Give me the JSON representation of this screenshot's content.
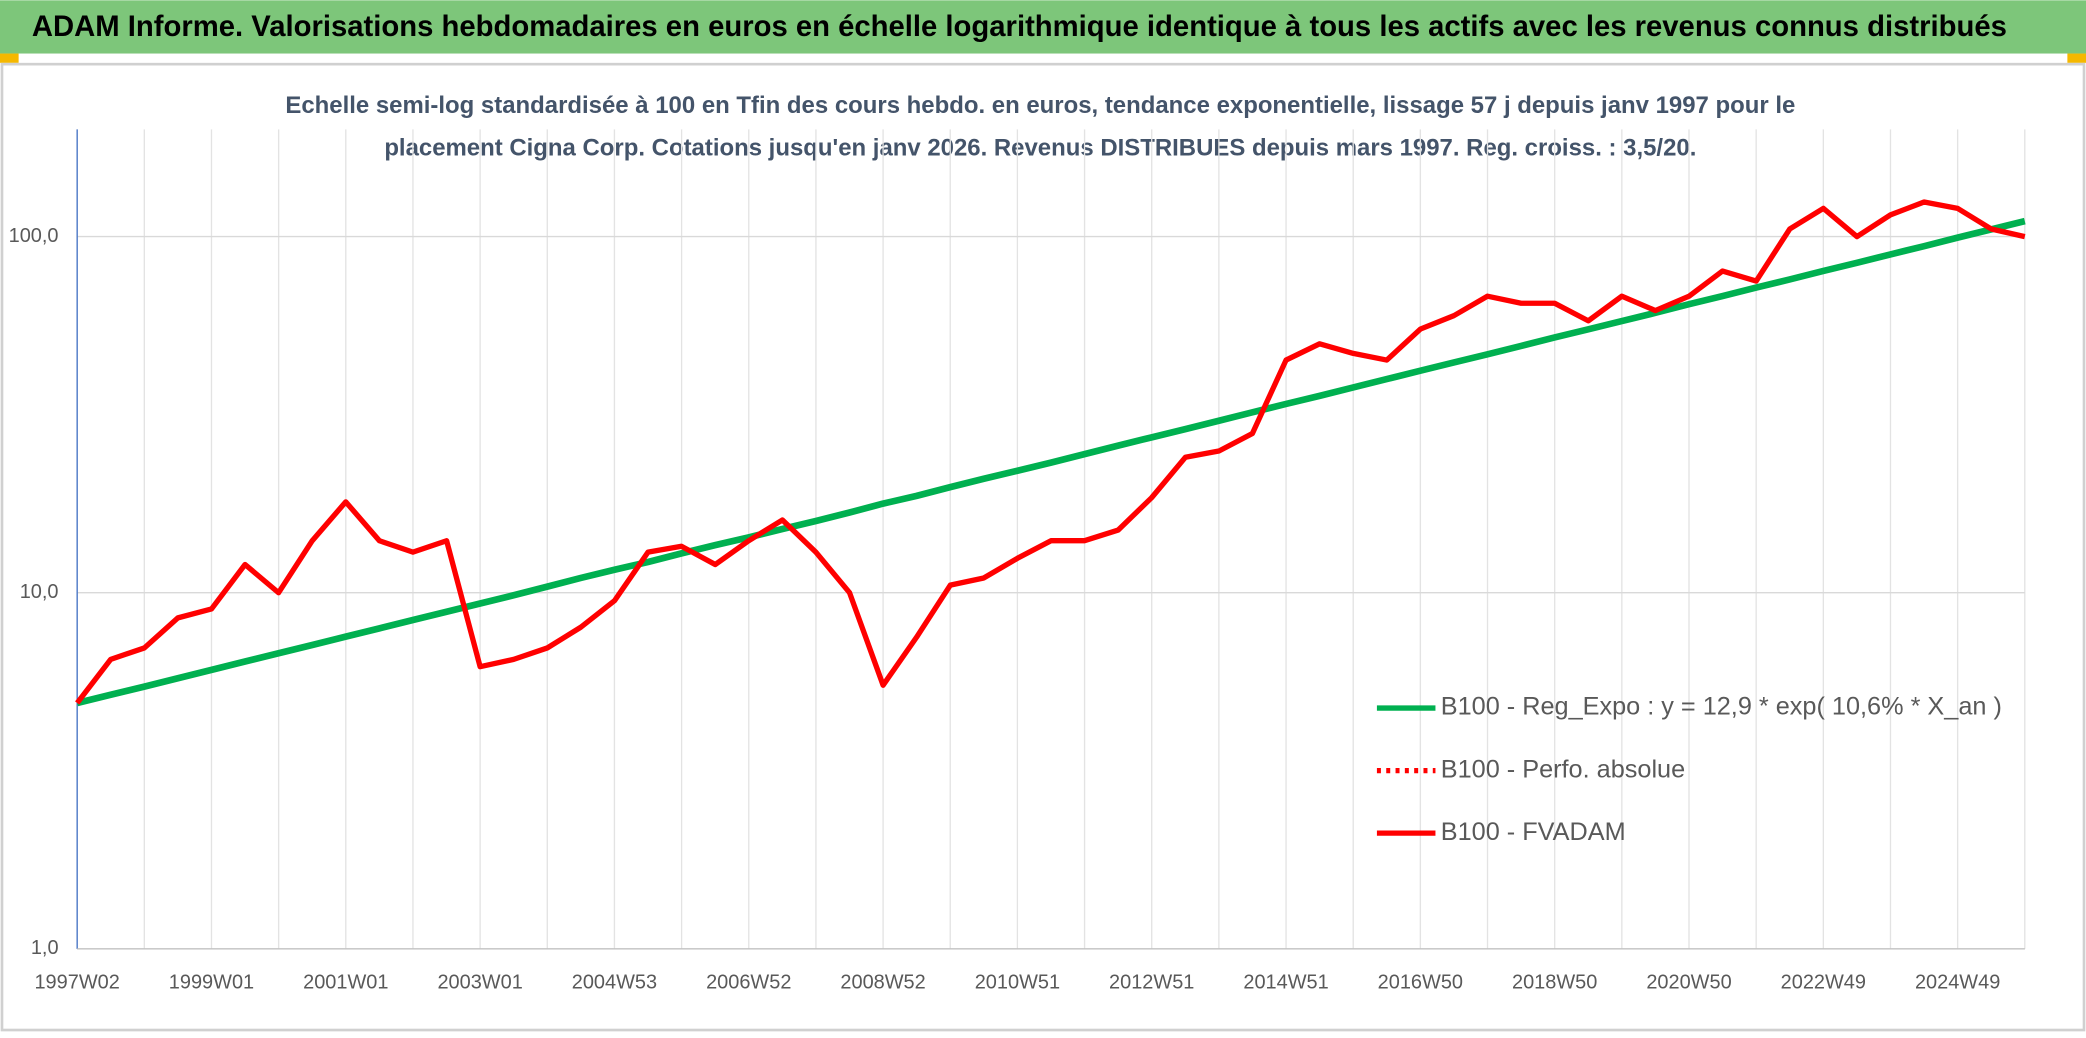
{
  "chart_data": {
    "type": "line",
    "title": "ADAM Informe. Valorisations hebdomadaires en euros en échelle logarithmique identique à tous les actifs avec les revenus connus distribués",
    "subtitle": [
      "Echelle semi-log standardisée à 100 en Tfin des cours hebdo. en euros, tendance exponentielle, lissage 57 j depuis janv 1997 pour le",
      "placement Cigna Corp. Cotations jusqu'en janv 2026. Revenus DISTRIBUES depuis mars 1997. Reg. croiss. : 3,5/20."
    ],
    "categories": [
      "1997W02",
      null,
      null,
      null,
      "1999W01",
      null,
      null,
      null,
      "2001W01",
      null,
      null,
      null,
      "2003W01",
      null,
      null,
      null,
      "2004W53",
      null,
      null,
      null,
      "2006W52",
      null,
      null,
      null,
      "2008W52",
      null,
      null,
      null,
      "2010W51",
      null,
      null,
      null,
      "2012W51",
      null,
      null,
      null,
      "2014W51",
      null,
      null,
      null,
      "2016W50",
      null,
      null,
      null,
      "2018W50",
      null,
      null,
      null,
      "2020W50",
      null,
      null,
      null,
      "2022W49",
      null,
      null,
      null,
      "2024W49",
      null,
      null
    ],
    "series": [
      {
        "name": "B100 - Reg_Expo : y = 12,9 * exp( 10,6% *  X_an )",
        "color": "#00b050",
        "style": "solid",
        "values": [
          4.9,
          5.17,
          5.45,
          5.75,
          6.07,
          6.41,
          6.76,
          7.13,
          7.53,
          7.94,
          8.38,
          8.84,
          9.33,
          9.84,
          10.4,
          11.0,
          11.6,
          12.2,
          12.9,
          13.6,
          14.3,
          15.1,
          15.9,
          16.8,
          17.8,
          18.7,
          19.8,
          20.9,
          22.0,
          23.2,
          24.5,
          25.9,
          27.3,
          28.8,
          30.4,
          32.1,
          33.9,
          35.7,
          37.7,
          39.8,
          42.0,
          44.3,
          46.7,
          49.3,
          52.1,
          54.9,
          57.9,
          61.1,
          64.6,
          68.1,
          71.9,
          75.8,
          80.1,
          84.4,
          89.1,
          94.0,
          99.3,
          104.7,
          110.5
        ]
      },
      {
        "name": "B100 - Perfo. absolue",
        "color": "#ff0000",
        "style": "dotted",
        "values": [
          null,
          null,
          null,
          null,
          null,
          null,
          null,
          null,
          null,
          null,
          null,
          null,
          null,
          null,
          null,
          null,
          null,
          null,
          null,
          null,
          null,
          null,
          null,
          null,
          null,
          null,
          null,
          null,
          null,
          null,
          null,
          null,
          null,
          null,
          null,
          null,
          null,
          null,
          null,
          null,
          null,
          null,
          null,
          null,
          null,
          null,
          null,
          null,
          null,
          null,
          null,
          null,
          null,
          null,
          null,
          null,
          null,
          null,
          null
        ]
      },
      {
        "name": "B100 - FVADAM",
        "color": "#ff0000",
        "style": "solid",
        "values": [
          4.9,
          6.5,
          7.0,
          8.5,
          9,
          12,
          10,
          14,
          18,
          14,
          13,
          14,
          6.2,
          6.5,
          7,
          8,
          9.5,
          13,
          13.5,
          12,
          14,
          16,
          13,
          10,
          5.5,
          7.5,
          10.5,
          11,
          12.5,
          14,
          14,
          15,
          18.5,
          24,
          25,
          28,
          45,
          50,
          47,
          45,
          55,
          60,
          68,
          65,
          65,
          58,
          68,
          62,
          68,
          80,
          75,
          105,
          120,
          100,
          115,
          125,
          120,
          105,
          100
        ]
      }
    ],
    "ylim": [
      1,
      200
    ],
    "log_y": true,
    "yticks": [
      {
        "value": 1,
        "label": "1,0"
      },
      {
        "value": 10,
        "label": "10,0"
      },
      {
        "value": 100,
        "label": "100,0"
      }
    ],
    "grid": true,
    "legend": "lower right"
  }
}
